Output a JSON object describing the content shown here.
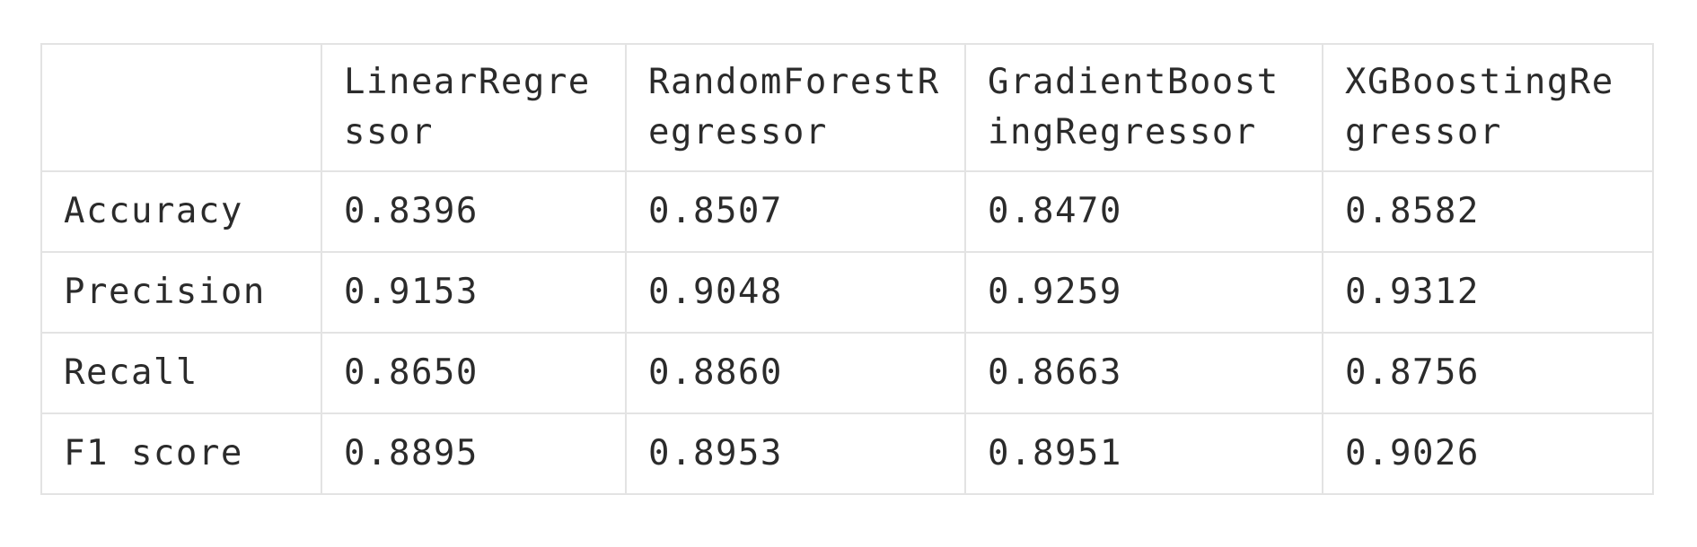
{
  "table": {
    "corner": "",
    "columns": [
      "LinearRegressor",
      "RandomForestRegressor",
      "GradientBoostingRegressor",
      "XGBoostingRegressor"
    ],
    "rows": [
      {
        "label": "Accuracy",
        "values": [
          "0.8396",
          "0.8507",
          "0.8470",
          "0.8582"
        ]
      },
      {
        "label": "Precision",
        "values": [
          "0.9153",
          "0.9048",
          "0.9259",
          "0.9312"
        ]
      },
      {
        "label": "Recall",
        "values": [
          "0.8650",
          "0.8860",
          "0.8663",
          "0.8756"
        ]
      },
      {
        "label": "F1 score",
        "values": [
          "0.8895",
          "0.8953",
          "0.8951",
          "0.9026"
        ]
      }
    ]
  }
}
